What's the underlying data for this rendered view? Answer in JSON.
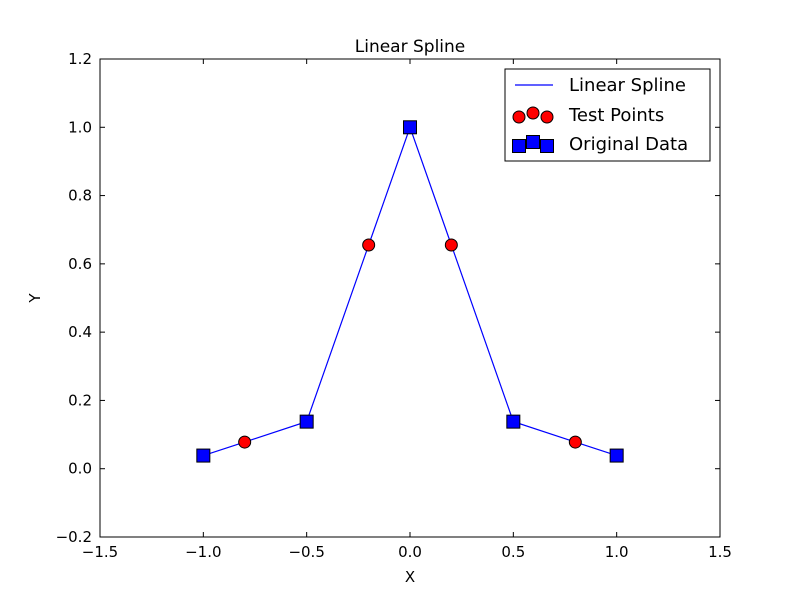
{
  "chart_data": {
    "type": "line",
    "title": "Linear Spline",
    "xlabel": "X",
    "ylabel": "Y",
    "xlim": [
      -1.5,
      1.5
    ],
    "ylim": [
      -0.2,
      1.2
    ],
    "xticks": [
      -1.5,
      -1.0,
      -0.5,
      0.0,
      0.5,
      1.0,
      1.5
    ],
    "xtick_labels": [
      "−1.5",
      "−1.0",
      "−0.5",
      "0.0",
      "0.5",
      "1.0",
      "1.5"
    ],
    "yticks": [
      -0.2,
      0.0,
      0.2,
      0.4,
      0.6,
      0.8,
      1.0,
      1.2
    ],
    "ytick_labels": [
      "−0.2",
      "0.0",
      "0.2",
      "0.4",
      "0.6",
      "0.8",
      "1.0",
      "1.2"
    ],
    "grid": false,
    "legend_position": "top-right",
    "series": [
      {
        "name": "Linear Spline",
        "kind": "line",
        "color": "#0000ff",
        "x": [
          -1.0,
          -0.8,
          -0.5,
          -0.2,
          0.0,
          0.2,
          0.5,
          0.8,
          1.0
        ],
        "y": [
          0.0385,
          0.078,
          0.1379,
          0.6552,
          1.0,
          0.6552,
          0.1379,
          0.078,
          0.0385
        ]
      },
      {
        "name": "Test Points",
        "kind": "scatter",
        "marker": "circle",
        "color": "#ff0000",
        "x": [
          -0.8,
          -0.2,
          0.2,
          0.8
        ],
        "y": [
          0.078,
          0.6552,
          0.6552,
          0.078
        ]
      },
      {
        "name": "Original Data",
        "kind": "scatter",
        "marker": "square",
        "color": "#0000ff",
        "x": [
          -1.0,
          -0.5,
          0.0,
          0.5,
          1.0
        ],
        "y": [
          0.0385,
          0.1379,
          1.0,
          0.1379,
          0.0385
        ]
      }
    ]
  }
}
